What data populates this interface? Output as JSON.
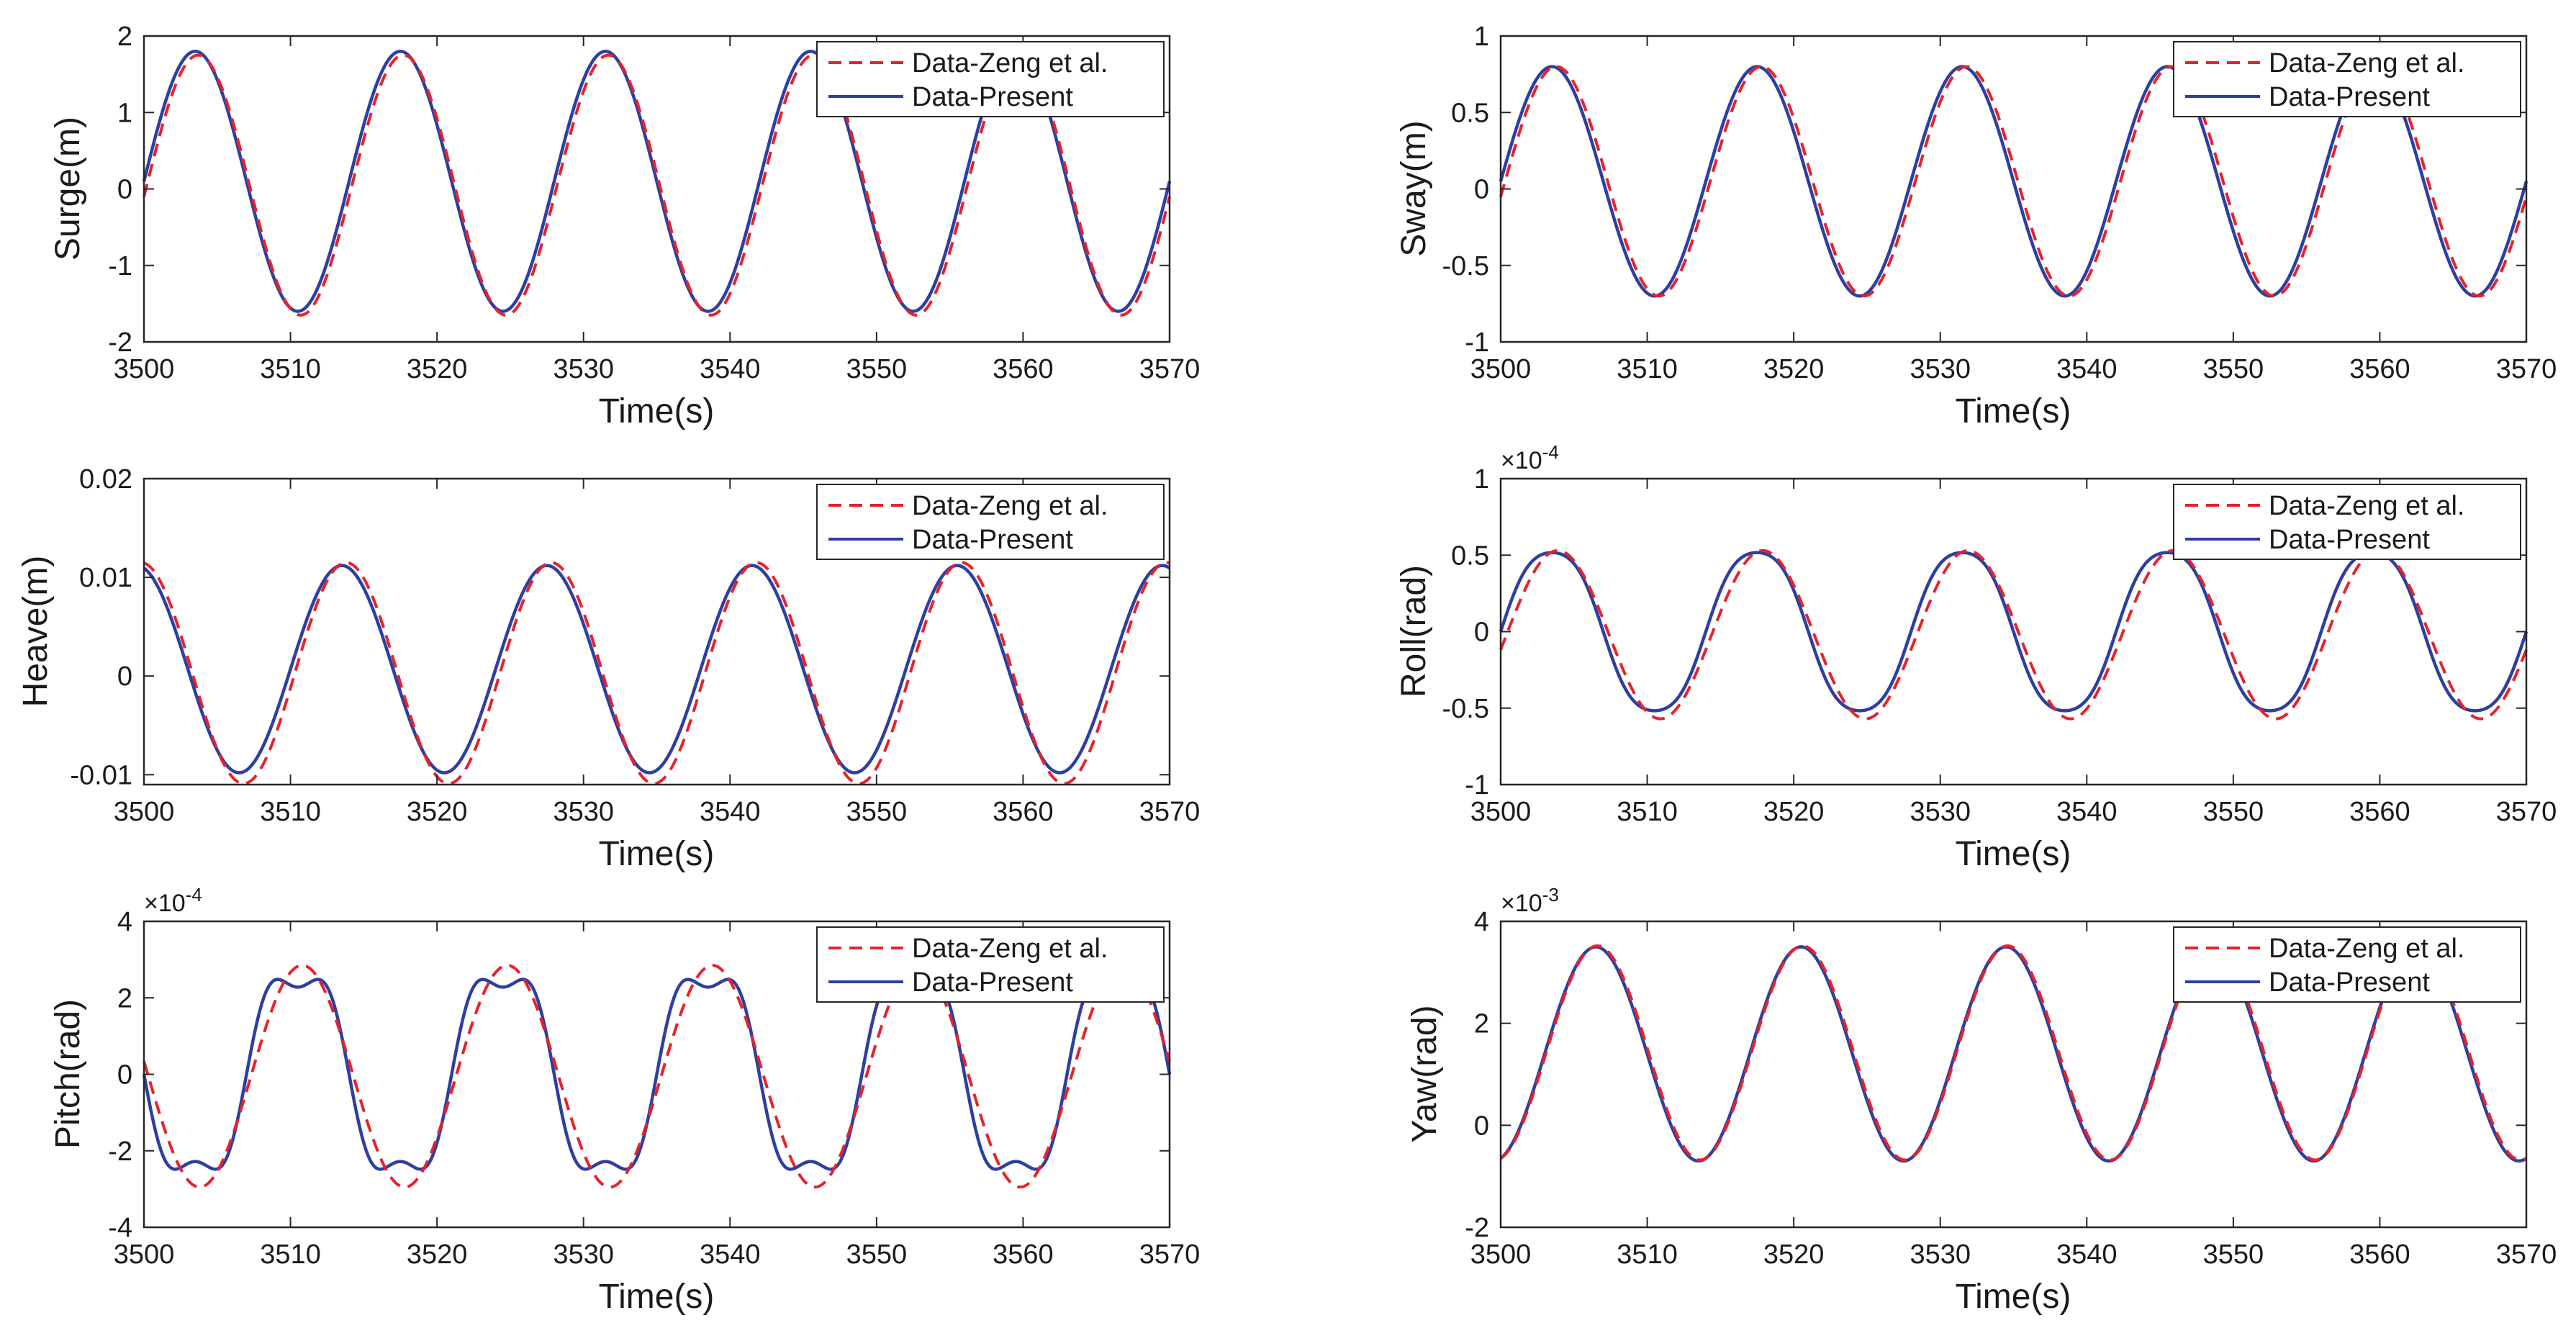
{
  "colors": {
    "reference": "#e8212a",
    "present": "#2e3fa0",
    "axis": "#262626"
  },
  "legend": {
    "reference": "Data-Zeng et al.",
    "present": "Data-Present"
  },
  "chart_data": [
    {
      "type": "line",
      "title": "",
      "xlabel": "Time(s)",
      "ylabel": "Surge(m)",
      "xlim": [
        3500,
        3570
      ],
      "ylim": [
        -2,
        2
      ],
      "xticks": [
        3500,
        3510,
        3520,
        3530,
        3540,
        3550,
        3560,
        3570
      ],
      "yticks": [
        -2,
        -1,
        0,
        1,
        2
      ],
      "ytick_labels": [
        "-2",
        "-1",
        "0",
        "1",
        "2"
      ],
      "exponent_base": "",
      "exponent": "",
      "grid": false,
      "legend_position": "top-right",
      "series": [
        {
          "name": "Data-Zeng et al.",
          "style": "dashed",
          "period": 14,
          "phase_time": 3500.2,
          "center": 0.05,
          "amplitude": 1.7,
          "ripple": 0,
          "ymin": -2,
          "ymax": 2
        },
        {
          "name": "Data-Present",
          "style": "solid",
          "period": 14,
          "phase_time": 3500,
          "center": 0.1,
          "amplitude": 1.7,
          "ripple": 0,
          "ymin": -2,
          "ymax": 2
        }
      ]
    },
    {
      "type": "line",
      "title": "",
      "xlabel": "Time(s)",
      "ylabel": "Sway(m)",
      "xlim": [
        3500,
        3570
      ],
      "ylim": [
        -1,
        1
      ],
      "xticks": [
        3500,
        3510,
        3520,
        3530,
        3540,
        3550,
        3560,
        3570
      ],
      "yticks": [
        -1,
        -0.5,
        0,
        0.5,
        1
      ],
      "ytick_labels": [
        "-1",
        "-0.5",
        "0",
        "0.5",
        "1"
      ],
      "exponent_base": "",
      "exponent": "",
      "grid": false,
      "legend_position": "top-right",
      "series": [
        {
          "name": "Data-Zeng et al.",
          "style": "dashed",
          "period": 14,
          "phase_time": 3500.3,
          "center": 0.05,
          "amplitude": 0.75,
          "ripple": 0,
          "ymin": -1,
          "ymax": 1
        },
        {
          "name": "Data-Present",
          "style": "solid",
          "period": 14,
          "phase_time": 3500,
          "center": 0.05,
          "amplitude": 0.75,
          "ripple": 0,
          "ymin": -1,
          "ymax": 1
        }
      ]
    },
    {
      "type": "line",
      "title": "",
      "xlabel": "Time(s)",
      "ylabel": "Heave(m)",
      "xlim": [
        3500,
        3570
      ],
      "ylim": [
        -0.011,
        0.02
      ],
      "xticks": [
        3500,
        3510,
        3520,
        3530,
        3540,
        3550,
        3560,
        3570
      ],
      "yticks": [
        -0.01,
        0,
        0.01,
        0.02
      ],
      "ytick_labels": [
        "-0.01",
        "0",
        "0.01",
        "0.02"
      ],
      "exponent_base": "",
      "exponent": "",
      "grid": false,
      "legend_position": "top-right",
      "series": [
        {
          "name": "Data-Zeng et al.",
          "style": "dashed",
          "period": 14,
          "phase_time": 3510.3,
          "center": 0.0003,
          "amplitude": 0.0112,
          "ripple": 0,
          "ymin": -0.011,
          "ymax": 0.02
        },
        {
          "name": "Data-Present",
          "style": "solid",
          "period": 14,
          "phase_time": 3510,
          "center": 0.0007,
          "amplitude": 0.0105,
          "ripple": 0,
          "ymin": -0.011,
          "ymax": 0.02
        }
      ]
    },
    {
      "type": "line",
      "title": "",
      "xlabel": "Time(s)",
      "ylabel": "Roll(rad)",
      "xlim": [
        3500,
        3570
      ],
      "ylim": [
        -1,
        1
      ],
      "xticks": [
        3500,
        3510,
        3520,
        3530,
        3540,
        3550,
        3560,
        3570
      ],
      "yticks": [
        -1,
        -0.5,
        0,
        0.5,
        1
      ],
      "ytick_labels": [
        "-1",
        "-0.5",
        "0",
        "0.5",
        "1"
      ],
      "exponent_base": "×10",
      "exponent": "-4",
      "grid": false,
      "legend_position": "top-right",
      "series": [
        {
          "name": "Data-Zeng et al.",
          "style": "dashed",
          "period": 14,
          "phase_time": 3500.4,
          "center": -0.02,
          "amplitude": 0.55,
          "ripple": 0,
          "ymin": -1,
          "ymax": 1
        },
        {
          "name": "Data-Present",
          "style": "solid",
          "period": 14,
          "phase_time": 3500,
          "center": 0,
          "amplitude": 0.55,
          "ripple": 0.06,
          "ymin": -1,
          "ymax": 1
        }
      ]
    },
    {
      "type": "line",
      "title": "",
      "xlabel": "Time(s)",
      "ylabel": "Pitch(rad)",
      "xlim": [
        3500,
        3570
      ],
      "ylim": [
        -4,
        4
      ],
      "xticks": [
        3500,
        3510,
        3520,
        3530,
        3540,
        3550,
        3560,
        3570
      ],
      "yticks": [
        -4,
        -2,
        0,
        2,
        4
      ],
      "ytick_labels": [
        "-4",
        "-2",
        "0",
        "2",
        "4"
      ],
      "exponent_base": "×10",
      "exponent": "-4",
      "grid": false,
      "legend_position": "top-right",
      "series": [
        {
          "name": "Data-Zeng et al.",
          "style": "dashed",
          "period": 14,
          "phase_time": 3507.3,
          "center": -0.05,
          "amplitude": 2.9,
          "ripple": 0,
          "ymin": -4,
          "ymax": 4
        },
        {
          "name": "Data-Present",
          "style": "solid",
          "period": 14,
          "phase_time": 3507,
          "center": 0,
          "amplitude": 2.85,
          "ripple": 0.2,
          "ymin": -4,
          "ymax": 4
        }
      ]
    },
    {
      "type": "line",
      "title": "",
      "xlabel": "Time(s)",
      "ylabel": "Yaw(rad)",
      "xlim": [
        3500,
        3570
      ],
      "ylim": [
        -2,
        4
      ],
      "xticks": [
        3500,
        3510,
        3520,
        3530,
        3540,
        3550,
        3560,
        3570
      ],
      "yticks": [
        -2,
        0,
        2,
        4
      ],
      "ytick_labels": [
        "-2",
        "0",
        "2",
        "4"
      ],
      "exponent_base": "×10",
      "exponent": "-3",
      "grid": false,
      "legend_position": "top-right",
      "series": [
        {
          "name": "Data-Zeng et al.",
          "style": "dashed",
          "period": 14,
          "phase_time": 3503.1,
          "center": 1.42,
          "amplitude": 2.1,
          "ripple": 0,
          "ymin": -2,
          "ymax": 4
        },
        {
          "name": "Data-Present",
          "style": "solid",
          "period": 14,
          "phase_time": 3503,
          "center": 1.4,
          "amplitude": 2.1,
          "ripple": 0,
          "ymin": -2,
          "ymax": 4
        }
      ]
    }
  ]
}
